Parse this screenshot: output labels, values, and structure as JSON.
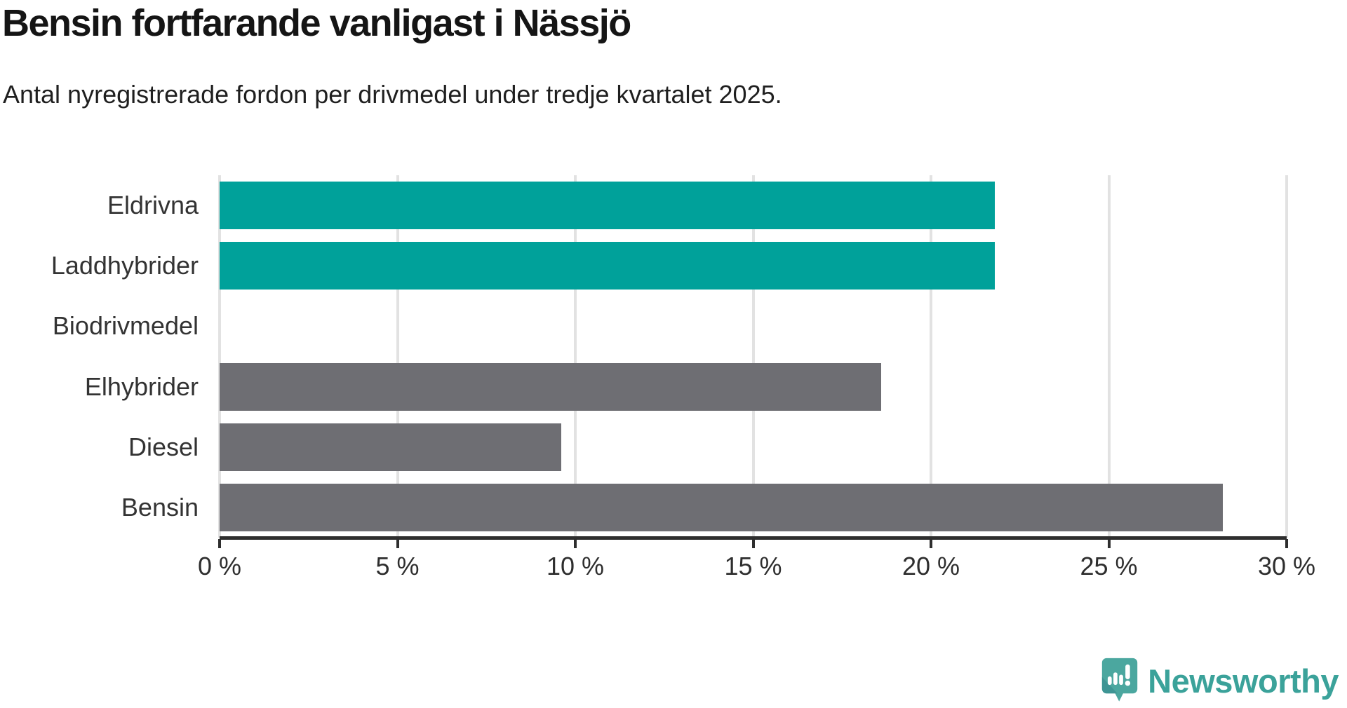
{
  "chart_data": {
    "type": "bar",
    "orientation": "horizontal",
    "title": "Bensin fortfarande vanligast i Nässjö",
    "subtitle": "Antal nyregistrerade fordon per drivmedel under tredje kvartalet 2025.",
    "categories": [
      "Eldrivna",
      "Laddhybrider",
      "Biodrivmedel",
      "Elhybrider",
      "Diesel",
      "Bensin"
    ],
    "values": [
      21.8,
      21.8,
      0,
      18.6,
      9.6,
      28.2
    ],
    "bar_colors": [
      "#00a19a",
      "#00a19a",
      "#6e6e73",
      "#6e6e73",
      "#6e6e73",
      "#6e6e73"
    ],
    "highlight_color": "#00a19a",
    "default_color": "#6e6e73",
    "xlabel": "",
    "ylabel": "",
    "xlim": [
      0,
      30
    ],
    "x_ticks": [
      0,
      5,
      10,
      15,
      20,
      25,
      30
    ],
    "x_tick_labels": [
      "0 %",
      "5 %",
      "10 %",
      "15 %",
      "20 %",
      "25 %",
      "30 %"
    ],
    "grid": "vertical",
    "gridline_color": "#e2e2e2",
    "axis_color": "#2e2e2e",
    "legend": "none"
  },
  "footer": {
    "brand": "Newsworthy",
    "brand_color": "#3ba29a",
    "logo_icon": "newsworthy-speech-bubble-chart-icon"
  }
}
